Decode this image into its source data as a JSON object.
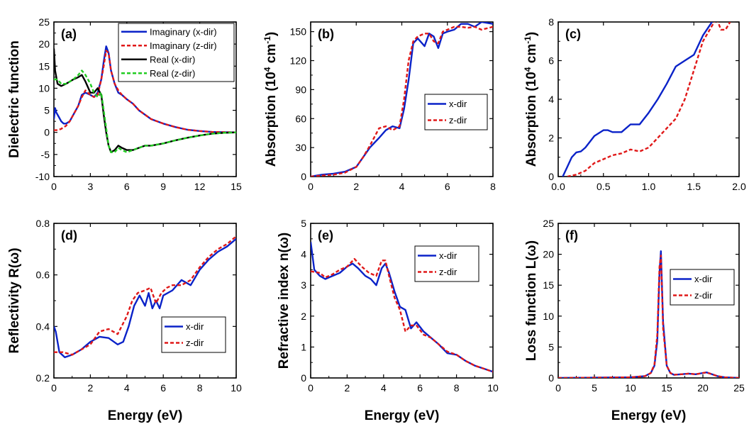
{
  "chart_data": [
    {
      "type": "line",
      "panel_label": "(a)",
      "ylabel": "Dielectric function",
      "xlabel": "",
      "xlim": [
        0,
        15
      ],
      "ylim": [
        -10,
        25
      ],
      "xticks": [
        0,
        3,
        6,
        9,
        12,
        15
      ],
      "yticks": [
        -10,
        -5,
        0,
        5,
        10,
        15,
        20,
        25
      ],
      "legend_position": "top-right",
      "series": [
        {
          "name": "Imaginary (x-dir)",
          "color": "#0a22c8",
          "dash": "solid",
          "x": [
            0,
            0.1,
            0.2,
            0.4,
            0.6,
            0.8,
            1.0,
            1.3,
            1.6,
            2.0,
            2.3,
            2.6,
            3.0,
            3.3,
            3.6,
            3.9,
            4.1,
            4.3,
            4.5,
            4.7,
            5.0,
            5.3,
            5.6,
            6.0,
            6.5,
            7,
            8,
            9,
            10,
            11,
            12,
            13,
            14,
            15
          ],
          "y": [
            3,
            5.5,
            4.5,
            3.5,
            2.5,
            2,
            2,
            2.5,
            4,
            6,
            8.5,
            9,
            8.5,
            8,
            9,
            12,
            16,
            19.5,
            18,
            14,
            11,
            9,
            8.5,
            7.5,
            6.5,
            5,
            3,
            2,
            1.2,
            0.6,
            0.3,
            0.1,
            0.05,
            0
          ]
        },
        {
          "name": "Imaginary (z-dir)",
          "color": "#e01818",
          "dash": "dashed",
          "x": [
            0,
            0.3,
            0.6,
            1.0,
            1.3,
            1.6,
            2.0,
            2.3,
            2.6,
            3.0,
            3.3,
            3.6,
            3.9,
            4.1,
            4.3,
            4.5,
            4.7,
            5.0,
            5.3,
            5.6,
            6.0,
            6.5,
            7,
            8,
            9,
            10,
            11,
            12,
            13,
            14,
            15
          ],
          "y": [
            0.5,
            0.5,
            0.8,
            1.5,
            2.5,
            4,
            6,
            8,
            9.5,
            8.5,
            8,
            8.5,
            12,
            15,
            18.5,
            18,
            14,
            11,
            9.5,
            8.5,
            7.5,
            6.5,
            5,
            3,
            2,
            1.2,
            0.6,
            0.3,
            0.1,
            0.05,
            0
          ]
        },
        {
          "name": "Real (x-dir)",
          "color": "#000000",
          "dash": "solid",
          "x": [
            0,
            0.1,
            0.3,
            0.6,
            1.0,
            1.3,
            1.6,
            2.0,
            2.3,
            2.6,
            3.0,
            3.3,
            3.6,
            3.9,
            4.1,
            4.3,
            4.5,
            4.7,
            5.0,
            5.3,
            5.6,
            6.0,
            6.5,
            7,
            7.5,
            8,
            9,
            10,
            11,
            12,
            13,
            14,
            15
          ],
          "y": [
            19,
            14,
            11,
            10.5,
            11,
            11.5,
            12,
            12.5,
            13,
            11.5,
            9,
            9,
            10,
            8.5,
            4,
            0,
            -3,
            -4.5,
            -4,
            -3,
            -3.5,
            -4,
            -4,
            -3.5,
            -3,
            -3,
            -2.5,
            -1.8,
            -1.2,
            -0.7,
            -0.3,
            -0.1,
            0
          ]
        },
        {
          "name": "Real (z-dir)",
          "color": "#22cc22",
          "dash": "dashed",
          "x": [
            0,
            0.3,
            0.6,
            1.0,
            1.3,
            1.6,
            2.0,
            2.3,
            2.6,
            3.0,
            3.3,
            3.6,
            3.9,
            4.1,
            4.3,
            4.5,
            4.7,
            5.0,
            5.3,
            5.6,
            6.0,
            6.5,
            7,
            7.5,
            8,
            9,
            10,
            11,
            12,
            13,
            14,
            15
          ],
          "y": [
            12,
            12,
            11,
            11,
            11.5,
            12,
            13,
            14,
            13,
            11,
            9,
            8,
            9,
            5,
            1,
            -3,
            -4.5,
            -4.5,
            -3.5,
            -4,
            -4.5,
            -4,
            -3.5,
            -3,
            -3,
            -2.5,
            -1.8,
            -1.2,
            -0.7,
            -0.3,
            -0.1,
            0
          ]
        }
      ]
    },
    {
      "type": "line",
      "panel_label": "(b)",
      "ylabel": "Absorption (10⁴ cm⁻¹)",
      "xlabel": "",
      "xlim": [
        0,
        8
      ],
      "ylim": [
        0,
        160
      ],
      "xticks": [
        0,
        2,
        4,
        6,
        8
      ],
      "yticks": [
        0,
        30,
        60,
        90,
        120,
        150
      ],
      "legend_position": "middle-right",
      "series": [
        {
          "name": "x-dir",
          "color": "#0a22c8",
          "dash": "solid",
          "x": [
            0,
            0.5,
            1.0,
            1.5,
            2.0,
            2.3,
            2.6,
            3.0,
            3.3,
            3.6,
            3.9,
            4.1,
            4.3,
            4.5,
            4.7,
            5.0,
            5.2,
            5.4,
            5.6,
            5.8,
            6.0,
            6.3,
            6.6,
            6.9,
            7.2,
            7.5,
            8
          ],
          "y": [
            0,
            2,
            3,
            5,
            10,
            20,
            30,
            40,
            48,
            52,
            50,
            70,
            100,
            138,
            143,
            135,
            148,
            145,
            133,
            148,
            150,
            152,
            158,
            158,
            155,
            160,
            158
          ]
        },
        {
          "name": "z-dir",
          "color": "#e01818",
          "dash": "dashed",
          "x": [
            0,
            0.5,
            1.0,
            1.5,
            2.0,
            2.3,
            2.6,
            3.0,
            3.3,
            3.6,
            3.9,
            4.1,
            4.3,
            4.5,
            4.7,
            5.0,
            5.2,
            5.4,
            5.6,
            5.8,
            6.0,
            6.3,
            6.6,
            6.9,
            7.2,
            7.5,
            8
          ],
          "y": [
            0,
            1,
            2,
            4,
            10,
            20,
            32,
            50,
            52,
            48,
            52,
            80,
            120,
            140,
            145,
            148,
            148,
            140,
            138,
            150,
            152,
            155,
            155,
            154,
            155,
            152,
            155
          ]
        }
      ]
    },
    {
      "type": "line",
      "panel_label": "(c)",
      "ylabel": "Absorption (10⁴ cm⁻¹)",
      "xlabel": "",
      "xlim": [
        0,
        2
      ],
      "ylim": [
        0,
        8
      ],
      "xticks": [
        0.0,
        0.5,
        1.0,
        1.5,
        2.0
      ],
      "yticks": [
        0,
        2,
        4,
        6,
        8
      ],
      "series": [
        {
          "name": "x-dir",
          "color": "#0a22c8",
          "dash": "solid",
          "x": [
            0.05,
            0.1,
            0.15,
            0.2,
            0.25,
            0.3,
            0.4,
            0.5,
            0.55,
            0.6,
            0.7,
            0.8,
            0.9,
            1.0,
            1.1,
            1.2,
            1.3,
            1.4,
            1.5,
            1.6,
            1.7
          ],
          "y": [
            0,
            0.5,
            1.0,
            1.25,
            1.3,
            1.5,
            2.1,
            2.4,
            2.4,
            2.3,
            2.3,
            2.7,
            2.7,
            3.3,
            4.0,
            4.8,
            5.7,
            6.0,
            6.3,
            7.3,
            8.0
          ]
        },
        {
          "name": "z-dir",
          "color": "#e01818",
          "dash": "dashed",
          "x": [
            0.1,
            0.2,
            0.3,
            0.4,
            0.5,
            0.6,
            0.7,
            0.8,
            0.9,
            1.0,
            1.1,
            1.2,
            1.3,
            1.4,
            1.5,
            1.6,
            1.7,
            1.75,
            1.8,
            1.85,
            1.9
          ],
          "y": [
            0,
            0.1,
            0.3,
            0.7,
            0.9,
            1.1,
            1.2,
            1.4,
            1.3,
            1.5,
            2.0,
            2.5,
            3.0,
            4.0,
            5.5,
            7.0,
            7.8,
            8.2,
            7.6,
            7.6,
            8.0
          ]
        }
      ]
    },
    {
      "type": "line",
      "panel_label": "(d)",
      "ylabel": "Reflectivity R(ω)",
      "xlabel": "Energy (eV)",
      "xlim": [
        0,
        10
      ],
      "ylim": [
        0.2,
        0.8
      ],
      "xticks": [
        0,
        2,
        4,
        6,
        8,
        10
      ],
      "yticks": [
        0.2,
        0.4,
        0.6,
        0.8
      ],
      "legend_position": "lower-middle",
      "series": [
        {
          "name": "x-dir",
          "color": "#0a22c8",
          "dash": "solid",
          "x": [
            0,
            0.1,
            0.3,
            0.6,
            1.0,
            1.5,
            2.0,
            2.5,
            3.0,
            3.5,
            3.8,
            4.1,
            4.4,
            4.7,
            5.0,
            5.2,
            5.4,
            5.6,
            5.8,
            6.0,
            6.5,
            7,
            7.5,
            8,
            8.5,
            9,
            9.5,
            10
          ],
          "y": [
            0.4,
            0.38,
            0.3,
            0.28,
            0.29,
            0.31,
            0.34,
            0.36,
            0.355,
            0.33,
            0.34,
            0.4,
            0.48,
            0.52,
            0.48,
            0.53,
            0.47,
            0.5,
            0.47,
            0.52,
            0.54,
            0.58,
            0.56,
            0.62,
            0.66,
            0.69,
            0.71,
            0.74
          ]
        },
        {
          "name": "z-dir",
          "color": "#e01818",
          "dash": "dashed",
          "x": [
            0,
            0.5,
            1.0,
            1.5,
            2.0,
            2.5,
            3.0,
            3.5,
            4.0,
            4.3,
            4.6,
            5.0,
            5.3,
            5.6,
            5.9,
            6.2,
            6.5,
            7,
            7.5,
            8,
            8.5,
            9,
            9.5,
            10
          ],
          "y": [
            0.3,
            0.3,
            0.29,
            0.31,
            0.33,
            0.38,
            0.39,
            0.37,
            0.44,
            0.5,
            0.53,
            0.54,
            0.55,
            0.49,
            0.53,
            0.55,
            0.56,
            0.56,
            0.58,
            0.63,
            0.67,
            0.7,
            0.72,
            0.75
          ]
        }
      ]
    },
    {
      "type": "line",
      "panel_label": "(e)",
      "ylabel": "Refractive index n(ω)",
      "xlabel": "Energy (eV)",
      "xlim": [
        0,
        10
      ],
      "ylim": [
        0,
        5
      ],
      "xticks": [
        0,
        2,
        4,
        6,
        8,
        10
      ],
      "yticks": [
        0,
        1,
        2,
        3,
        4,
        5
      ],
      "legend_position": "top-right",
      "series": [
        {
          "name": "x-dir",
          "color": "#0a22c8",
          "dash": "solid",
          "x": [
            0,
            0.2,
            0.5,
            0.8,
            1.2,
            1.6,
            2.0,
            2.3,
            2.6,
            3.0,
            3.3,
            3.6,
            3.9,
            4.1,
            4.3,
            4.6,
            4.9,
            5.2,
            5.5,
            5.8,
            6.2,
            6.6,
            7,
            7.5,
            8,
            8.5,
            9,
            9.5,
            10
          ],
          "y": [
            4.4,
            3.5,
            3.3,
            3.2,
            3.3,
            3.4,
            3.6,
            3.7,
            3.55,
            3.3,
            3.2,
            3.0,
            3.55,
            3.7,
            3.4,
            2.8,
            2.3,
            2.2,
            1.6,
            1.8,
            1.5,
            1.3,
            1.1,
            0.8,
            0.75,
            0.55,
            0.4,
            0.3,
            0.2
          ]
        },
        {
          "name": "z-dir",
          "color": "#e01818",
          "dash": "dashed",
          "x": [
            0,
            0.5,
            0.8,
            1.2,
            1.6,
            2.0,
            2.4,
            2.8,
            3.2,
            3.6,
            3.9,
            4.1,
            4.3,
            4.6,
            4.9,
            5.2,
            5.5,
            5.8,
            6.2,
            6.6,
            7,
            7.5,
            8,
            8.5,
            9,
            9.5,
            10
          ],
          "y": [
            3.45,
            3.4,
            3.25,
            3.35,
            3.5,
            3.6,
            3.85,
            3.6,
            3.4,
            3.3,
            3.8,
            3.8,
            3.3,
            2.6,
            2.2,
            1.5,
            1.7,
            1.7,
            1.4,
            1.3,
            1.1,
            0.85,
            0.75,
            0.55,
            0.4,
            0.3,
            0.2
          ]
        }
      ]
    },
    {
      "type": "line",
      "panel_label": "(f)",
      "ylabel": "Loss function L(ω)",
      "xlabel": "Energy (eV)",
      "xlim": [
        0,
        25
      ],
      "ylim": [
        0,
        25
      ],
      "xticks": [
        0,
        5,
        10,
        15,
        20,
        25
      ],
      "yticks": [
        0,
        5,
        10,
        15,
        20,
        25
      ],
      "legend_position": "middle-left",
      "series": [
        {
          "name": "x-dir",
          "color": "#0a22c8",
          "dash": "solid",
          "x": [
            0,
            5,
            10,
            12,
            12.8,
            13.3,
            13.7,
            14.0,
            14.2,
            14.5,
            15.0,
            15.5,
            16,
            17,
            18,
            19,
            20,
            20.5,
            21,
            22,
            23,
            24,
            25
          ],
          "y": [
            0,
            0.05,
            0.1,
            0.3,
            0.8,
            2,
            6,
            17,
            20.5,
            9,
            2,
            0.8,
            0.5,
            0.6,
            0.7,
            0.6,
            0.8,
            0.9,
            0.7,
            0.3,
            0.1,
            0.05,
            0
          ]
        },
        {
          "name": "z-dir",
          "color": "#e01818",
          "dash": "dashed",
          "x": [
            0,
            5,
            10,
            12,
            12.8,
            13.3,
            13.7,
            14.0,
            14.2,
            14.5,
            15.0,
            15.5,
            16,
            17,
            18,
            19,
            20,
            20.5,
            21,
            22,
            23,
            24,
            25
          ],
          "y": [
            0,
            0.05,
            0.1,
            0.3,
            0.8,
            2.2,
            7,
            18,
            19.8,
            8,
            2,
            0.8,
            0.5,
            0.6,
            0.7,
            0.6,
            0.8,
            0.9,
            0.7,
            0.3,
            0.1,
            0.05,
            0
          ]
        }
      ]
    }
  ]
}
